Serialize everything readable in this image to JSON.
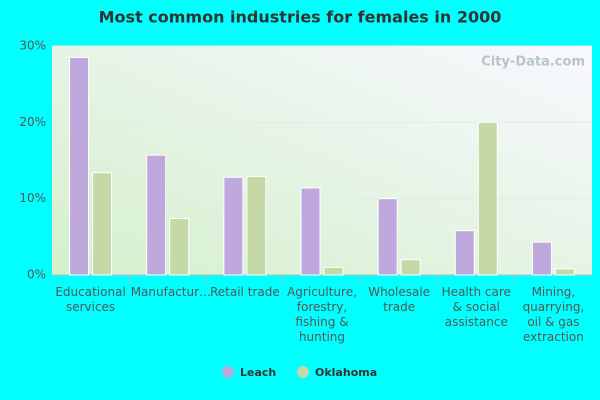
{
  "chart_data": {
    "type": "bar",
    "title": "Most common industries for females in 2000",
    "watermark": "City-Data.com",
    "categories": [
      "Educational services",
      "Manufactur…",
      "Retail trade",
      "Agriculture, forestry, fishing & hunting",
      "Wholesale trade",
      "Health care & social assistance",
      "Mining, quarrying, oil & gas extraction"
    ],
    "series": [
      {
        "name": "Leach",
        "color": "#bfa8dc",
        "values": [
          28.5,
          15.7,
          12.8,
          11.4,
          10.0,
          5.8,
          4.3
        ]
      },
      {
        "name": "Oklahoma",
        "color": "#c5d9a7",
        "values": [
          13.4,
          7.4,
          12.9,
          1.0,
          2.0,
          20.0,
          0.8
        ]
      }
    ],
    "ylim": [
      0,
      30
    ],
    "yticks": [
      {
        "value": 0,
        "label": "0%"
      },
      {
        "value": 10,
        "label": "10%"
      },
      {
        "value": 20,
        "label": "20%"
      },
      {
        "value": 30,
        "label": "30%"
      }
    ],
    "grid": true,
    "legend": "bottom"
  }
}
